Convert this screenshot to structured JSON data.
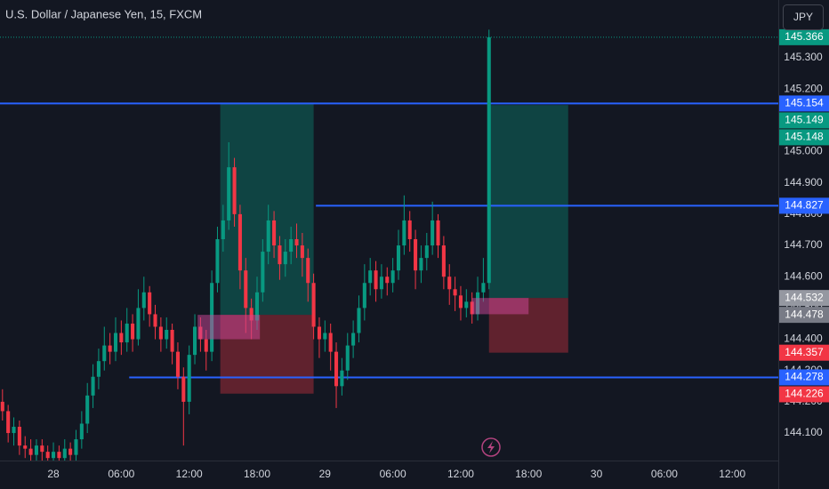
{
  "chart_data": {
    "type": "candlestick",
    "title": "U.S. Dollar / Japanese Yen, 15, FXCM",
    "currency": "JPY",
    "up_color": "#089981",
    "down_color": "#f23645",
    "grid": false,
    "xlim": [
      -4.72,
      64.07
    ],
    "ylim": [
      144.012,
      145.485
    ],
    "xticks": [
      {
        "value": 0,
        "label": "28"
      },
      {
        "value": 6,
        "label": "06:00"
      },
      {
        "value": 12,
        "label": "12:00"
      },
      {
        "value": 18,
        "label": "18:00"
      },
      {
        "value": 24,
        "label": "29"
      },
      {
        "value": 30,
        "label": "06:00"
      },
      {
        "value": 36,
        "label": "12:00"
      },
      {
        "value": 42,
        "label": "18:00"
      },
      {
        "value": 48,
        "label": "30"
      },
      {
        "value": 54,
        "label": "06:00"
      },
      {
        "value": 60,
        "label": "12:00"
      }
    ],
    "yticks": [
      {
        "value": 144.1,
        "label": "144.100"
      },
      {
        "value": 144.2,
        "label": "144.200"
      },
      {
        "value": 144.3,
        "label": "144.300"
      },
      {
        "value": 144.4,
        "label": "144.400"
      },
      {
        "value": 144.5,
        "label": "144.500"
      },
      {
        "value": 144.6,
        "label": "144.600"
      },
      {
        "value": 144.7,
        "label": "144.700"
      },
      {
        "value": 144.8,
        "label": "144.800"
      },
      {
        "value": 144.9,
        "label": "144.900"
      },
      {
        "value": 145.0,
        "label": "145.000"
      },
      {
        "value": 145.1,
        "label": "145.100"
      },
      {
        "value": 145.2,
        "label": "145.200"
      },
      {
        "value": 145.3,
        "label": "145.300"
      }
    ],
    "x": [
      -4.5,
      -4,
      -3.5,
      -3,
      -2.5,
      -2,
      -1.5,
      -1,
      -0.5,
      0,
      0.5,
      1,
      1.5,
      2,
      2.5,
      3,
      3.5,
      4,
      4.5,
      5,
      5.5,
      6,
      6.5,
      7,
      7.5,
      8,
      8.5,
      9,
      9.5,
      10,
      10.5,
      11,
      11.5,
      12,
      12.5,
      13,
      13.5,
      14,
      14.5,
      15,
      15.5,
      16,
      16.5,
      17,
      17.5,
      18,
      18.5,
      19,
      19.5,
      20,
      20.5,
      21,
      21.5,
      22,
      22.5,
      23,
      23.5,
      24,
      24.5,
      25,
      25.5,
      26,
      26.5,
      27,
      27.5,
      28,
      28.5,
      29,
      29.5,
      30,
      30.5,
      31,
      31.5,
      32,
      32.5,
      33,
      33.5,
      34,
      34.5,
      35,
      35.5,
      36,
      36.5,
      37,
      37.5,
      38,
      38.5
    ],
    "candles": [
      [
        144.2,
        144.24,
        144.14,
        144.17
      ],
      [
        144.17,
        144.19,
        144.07,
        144.1
      ],
      [
        144.1,
        144.15,
        144.06,
        144.12
      ],
      [
        144.12,
        144.14,
        144.03,
        144.06
      ],
      [
        144.06,
        144.09,
        144.02,
        144.05
      ],
      [
        144.05,
        144.08,
        144.01,
        144.03
      ],
      [
        144.03,
        144.08,
        144.01,
        144.06
      ],
      [
        144.06,
        144.08,
        144.01,
        144.04
      ],
      [
        144.04,
        144.06,
        144.0,
        144.02
      ],
      [
        144.02,
        144.07,
        144.0,
        144.04
      ],
      [
        144.04,
        144.06,
        144.0,
        144.02
      ],
      [
        144.02,
        144.08,
        144.0,
        144.05
      ],
      [
        144.05,
        144.07,
        144.0,
        144.03
      ],
      [
        144.03,
        144.11,
        144.01,
        144.08
      ],
      [
        144.08,
        144.17,
        144.05,
        144.13
      ],
      [
        144.13,
        144.26,
        144.1,
        144.22
      ],
      [
        144.22,
        144.32,
        144.18,
        144.28
      ],
      [
        144.28,
        144.37,
        144.24,
        144.33
      ],
      [
        144.33,
        144.44,
        144.3,
        144.38
      ],
      [
        144.38,
        144.42,
        144.32,
        144.36
      ],
      [
        144.36,
        144.47,
        144.33,
        144.42
      ],
      [
        144.42,
        144.46,
        144.35,
        144.39
      ],
      [
        144.39,
        144.5,
        144.36,
        144.45
      ],
      [
        144.45,
        144.48,
        144.36,
        144.4
      ],
      [
        144.4,
        144.56,
        144.38,
        144.5
      ],
      [
        144.5,
        144.6,
        144.46,
        144.55
      ],
      [
        144.55,
        144.57,
        144.44,
        144.48
      ],
      [
        144.48,
        144.51,
        144.4,
        144.44
      ],
      [
        144.44,
        144.47,
        144.36,
        144.4
      ],
      [
        144.4,
        144.47,
        144.37,
        144.43
      ],
      [
        144.43,
        144.45,
        144.32,
        144.36
      ],
      [
        144.36,
        144.39,
        144.24,
        144.28
      ],
      [
        144.28,
        144.31,
        144.06,
        144.2
      ],
      [
        144.2,
        144.38,
        144.16,
        144.35
      ],
      [
        144.35,
        144.48,
        144.32,
        144.44
      ],
      [
        144.44,
        144.47,
        144.36,
        144.4
      ],
      [
        144.4,
        144.43,
        144.3,
        144.36
      ],
      [
        144.36,
        144.62,
        144.33,
        144.58
      ],
      [
        144.58,
        144.76,
        144.55,
        144.72
      ],
      [
        144.72,
        144.83,
        144.68,
        144.78
      ],
      [
        144.78,
        145.03,
        144.75,
        144.95
      ],
      [
        144.95,
        144.98,
        144.76,
        144.8
      ],
      [
        144.8,
        144.83,
        144.56,
        144.62
      ],
      [
        144.62,
        144.66,
        144.42,
        144.5
      ],
      [
        144.5,
        144.53,
        144.4,
        144.46
      ],
      [
        144.46,
        144.6,
        144.43,
        144.55
      ],
      [
        144.55,
        144.72,
        144.52,
        144.68
      ],
      [
        144.68,
        144.83,
        144.64,
        144.78
      ],
      [
        144.78,
        144.81,
        144.66,
        144.7
      ],
      [
        144.7,
        144.73,
        144.59,
        144.64
      ],
      [
        144.64,
        144.72,
        144.6,
        144.68
      ],
      [
        144.68,
        144.76,
        144.64,
        144.72
      ],
      [
        144.72,
        144.77,
        144.66,
        144.7
      ],
      [
        144.7,
        144.74,
        144.6,
        144.66
      ],
      [
        144.66,
        144.69,
        144.52,
        144.58
      ],
      [
        144.58,
        144.61,
        144.4,
        144.44
      ],
      [
        144.44,
        144.47,
        144.34,
        144.4
      ],
      [
        144.4,
        144.46,
        144.36,
        144.42
      ],
      [
        144.42,
        144.45,
        144.3,
        144.36
      ],
      [
        144.36,
        144.39,
        144.18,
        144.25
      ],
      [
        144.25,
        144.34,
        144.22,
        144.3
      ],
      [
        144.3,
        144.42,
        144.27,
        144.38
      ],
      [
        144.38,
        144.46,
        144.34,
        144.42
      ],
      [
        144.42,
        144.54,
        144.39,
        144.5
      ],
      [
        144.5,
        144.64,
        144.46,
        144.58
      ],
      [
        144.58,
        144.66,
        144.54,
        144.62
      ],
      [
        144.62,
        144.65,
        144.52,
        144.56
      ],
      [
        144.56,
        144.64,
        144.53,
        144.6
      ],
      [
        144.6,
        144.63,
        144.54,
        144.58
      ],
      [
        144.58,
        144.66,
        144.55,
        144.62
      ],
      [
        144.62,
        144.75,
        144.59,
        144.7
      ],
      [
        144.7,
        144.86,
        144.67,
        144.78
      ],
      [
        144.78,
        144.81,
        144.68,
        144.72
      ],
      [
        144.72,
        144.75,
        144.56,
        144.62
      ],
      [
        144.62,
        144.7,
        144.58,
        144.66
      ],
      [
        144.66,
        144.74,
        144.62,
        144.7
      ],
      [
        144.7,
        144.84,
        144.67,
        144.78
      ],
      [
        144.78,
        144.8,
        144.66,
        144.7
      ],
      [
        144.7,
        144.73,
        144.56,
        144.6
      ],
      [
        144.6,
        144.64,
        144.51,
        144.56
      ],
      [
        144.56,
        144.6,
        144.49,
        144.54
      ],
      [
        144.54,
        144.57,
        144.46,
        144.5
      ],
      [
        144.5,
        144.56,
        144.47,
        144.52
      ],
      [
        144.52,
        144.55,
        144.45,
        144.48
      ],
      [
        144.48,
        144.6,
        144.46,
        144.55
      ],
      [
        144.55,
        144.66,
        144.52,
        144.58
      ],
      [
        144.58,
        145.39,
        144.56,
        145.366
      ]
    ],
    "positions": [
      {
        "from": 14.75,
        "to": 23,
        "entry": 144.478,
        "target": 145.154,
        "stop": 144.226
      },
      {
        "from": 38.5,
        "to": 45.5,
        "entry": 144.532,
        "target": 145.149,
        "stop": 144.357
      }
    ],
    "zones": [
      {
        "from": 12.75,
        "to": 18.25,
        "top": 144.478,
        "bottom": 144.4
      },
      {
        "from": 37,
        "to": 42,
        "top": 144.532,
        "bottom": 144.48
      }
    ],
    "levels": [
      {
        "value": 145.154,
        "from": -4.72
      },
      {
        "value": 144.827,
        "from": 23.2
      },
      {
        "value": 144.278,
        "from": 6.7
      }
    ],
    "level_color": "#2962ff",
    "target_color": "#089981",
    "stop_color": "#f23645",
    "zone_color": "#d0479a",
    "price_labels": [
      {
        "value": 145.366,
        "color": "#089981"
      },
      {
        "value": 145.154,
        "color": "#2962ff"
      },
      {
        "value": 145.149,
        "color": "#089981"
      },
      {
        "value": 145.148,
        "color": "#089981"
      },
      {
        "value": 144.827,
        "color": "#2962ff"
      },
      {
        "value": 144.532,
        "color": "#9598a1"
      },
      {
        "value": 144.478,
        "color": "#787b86"
      },
      {
        "value": 144.357,
        "color": "#f23645"
      },
      {
        "value": 144.278,
        "color": "#2962ff"
      },
      {
        "value": 144.226,
        "color": "#f23645"
      }
    ]
  }
}
